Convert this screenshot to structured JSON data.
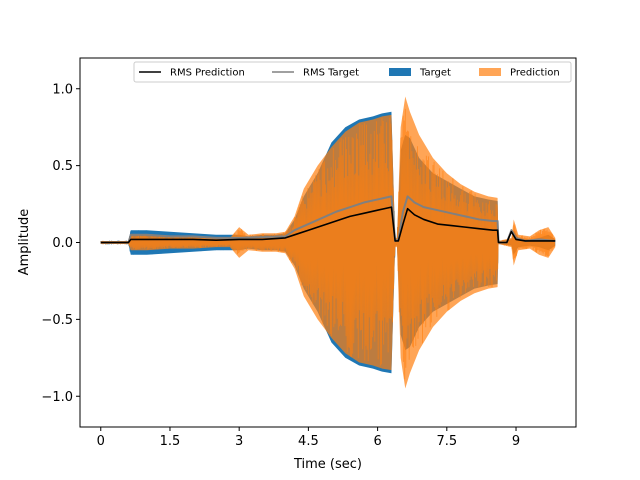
{
  "chart_data": {
    "type": "area",
    "title": "",
    "xlabel": "Time (sec)",
    "ylabel": "Amplitude",
    "xlim": [
      -0.45,
      10.3
    ],
    "ylim": [
      -1.2,
      1.2
    ],
    "x_ticks": [
      0,
      1.5,
      3,
      4.5,
      6,
      7.5,
      9
    ],
    "x_tick_labels": [
      "0",
      "1.5",
      "3",
      "4.5",
      "6",
      "7.5",
      "9"
    ],
    "y_ticks": [
      -1.0,
      -0.5,
      0.0,
      0.5,
      1.0
    ],
    "y_tick_labels": [
      "−1.0",
      "−0.5",
      "0.0",
      "0.5",
      "1.0"
    ],
    "grid": false,
    "legend_position": "top-right",
    "legend": [
      {
        "label": "RMS Prediction",
        "kind": "line",
        "color": "#000000"
      },
      {
        "label": "RMS Target",
        "kind": "line",
        "color": "#808080"
      },
      {
        "label": "Target",
        "kind": "patch",
        "color": "#1f77b4"
      },
      {
        "label": "Prediction",
        "kind": "patch",
        "color": "#ff7f0e"
      }
    ],
    "series": [
      {
        "name": "Target",
        "kind": "envelope",
        "color": "#1f77b4",
        "x": [
          0,
          0.6,
          0.65,
          1.0,
          1.5,
          2.0,
          2.5,
          2.8,
          3.0,
          3.2,
          3.5,
          3.8,
          4.0,
          4.2,
          4.4,
          4.7,
          5.0,
          5.3,
          5.6,
          5.9,
          6.1,
          6.3,
          6.38,
          6.42,
          6.5,
          6.6,
          6.7,
          6.9,
          7.2,
          7.5,
          7.8,
          8.1,
          8.4,
          8.6,
          8.62,
          8.9,
          8.95,
          9.05,
          9.3,
          9.5,
          9.7,
          9.85
        ],
        "upper": [
          0.01,
          0.01,
          0.08,
          0.08,
          0.07,
          0.06,
          0.05,
          0.05,
          0.05,
          0.04,
          0.05,
          0.05,
          0.06,
          0.15,
          0.3,
          0.45,
          0.65,
          0.75,
          0.8,
          0.82,
          0.84,
          0.85,
          0.02,
          0.02,
          0.6,
          0.7,
          0.68,
          0.55,
          0.45,
          0.4,
          0.35,
          0.3,
          0.28,
          0.27,
          0.01,
          0.02,
          0.08,
          0.03,
          0.02,
          0.03,
          0.05,
          0.02
        ],
        "lower": [
          -0.01,
          -0.01,
          -0.08,
          -0.08,
          -0.07,
          -0.06,
          -0.05,
          -0.05,
          -0.05,
          -0.04,
          -0.05,
          -0.05,
          -0.06,
          -0.15,
          -0.3,
          -0.45,
          -0.65,
          -0.75,
          -0.8,
          -0.82,
          -0.84,
          -0.85,
          -0.02,
          -0.02,
          -0.6,
          -0.7,
          -0.68,
          -0.55,
          -0.45,
          -0.4,
          -0.35,
          -0.3,
          -0.28,
          -0.27,
          -0.01,
          -0.02,
          -0.08,
          -0.03,
          -0.02,
          -0.03,
          -0.05,
          -0.02
        ]
      },
      {
        "name": "Prediction",
        "kind": "envelope",
        "color": "#ff7f0e",
        "x": [
          0,
          0.6,
          0.65,
          1.0,
          1.5,
          2.0,
          2.5,
          2.8,
          3.0,
          3.2,
          3.5,
          3.8,
          4.0,
          4.2,
          4.4,
          4.7,
          5.0,
          5.3,
          5.6,
          5.9,
          6.1,
          6.3,
          6.38,
          6.42,
          6.5,
          6.6,
          6.7,
          6.9,
          7.2,
          7.5,
          7.8,
          8.1,
          8.4,
          8.6,
          8.62,
          8.9,
          8.95,
          9.05,
          9.3,
          9.5,
          9.7,
          9.85
        ],
        "upper": [
          0.01,
          0.01,
          0.05,
          0.05,
          0.04,
          0.04,
          0.03,
          0.03,
          0.1,
          0.05,
          0.06,
          0.06,
          0.07,
          0.17,
          0.35,
          0.5,
          0.62,
          0.72,
          0.78,
          0.8,
          0.82,
          0.83,
          0.03,
          0.03,
          0.75,
          0.95,
          0.85,
          0.7,
          0.55,
          0.45,
          0.38,
          0.33,
          0.3,
          0.29,
          0.01,
          0.03,
          0.15,
          0.05,
          0.04,
          0.08,
          0.1,
          0.03
        ],
        "lower": [
          -0.01,
          -0.01,
          -0.05,
          -0.05,
          -0.04,
          -0.04,
          -0.03,
          -0.03,
          -0.1,
          -0.05,
          -0.06,
          -0.06,
          -0.07,
          -0.17,
          -0.35,
          -0.5,
          -0.62,
          -0.72,
          -0.78,
          -0.8,
          -0.82,
          -0.83,
          -0.03,
          -0.03,
          -0.75,
          -0.95,
          -0.85,
          -0.7,
          -0.55,
          -0.45,
          -0.38,
          -0.33,
          -0.3,
          -0.29,
          -0.01,
          -0.03,
          -0.15,
          -0.05,
          -0.04,
          -0.08,
          -0.1,
          -0.03
        ]
      },
      {
        "name": "RMS Target",
        "kind": "line",
        "color": "#808080",
        "x": [
          0,
          0.6,
          0.65,
          1.0,
          1.5,
          2.0,
          2.5,
          3.0,
          3.5,
          4.0,
          4.2,
          4.5,
          4.8,
          5.1,
          5.4,
          5.7,
          6.0,
          6.3,
          6.38,
          6.45,
          6.55,
          6.65,
          6.8,
          7.0,
          7.3,
          7.6,
          7.9,
          8.2,
          8.5,
          8.6,
          8.62,
          8.8,
          8.9,
          9.0,
          9.2,
          9.5,
          9.85
        ],
        "values": [
          0.0,
          0.0,
          0.05,
          0.05,
          0.04,
          0.04,
          0.03,
          0.03,
          0.035,
          0.04,
          0.08,
          0.12,
          0.16,
          0.2,
          0.23,
          0.26,
          0.28,
          0.3,
          0.01,
          0.02,
          0.2,
          0.3,
          0.26,
          0.23,
          0.21,
          0.19,
          0.17,
          0.15,
          0.14,
          0.14,
          0.0,
          0.0,
          0.08,
          0.03,
          0.01,
          0.02,
          0.01
        ]
      },
      {
        "name": "RMS Prediction",
        "kind": "line",
        "color": "#000000",
        "x": [
          0,
          0.6,
          0.65,
          1.0,
          1.5,
          2.0,
          2.5,
          3.0,
          3.5,
          4.0,
          4.2,
          4.5,
          4.8,
          5.1,
          5.4,
          5.7,
          6.0,
          6.3,
          6.38,
          6.45,
          6.55,
          6.65,
          6.8,
          7.0,
          7.3,
          7.6,
          7.9,
          8.2,
          8.5,
          8.6,
          8.62,
          8.8,
          8.9,
          9.0,
          9.2,
          9.5,
          9.85
        ],
        "values": [
          0.0,
          0.0,
          0.02,
          0.02,
          0.02,
          0.02,
          0.015,
          0.02,
          0.02,
          0.03,
          0.05,
          0.08,
          0.11,
          0.14,
          0.17,
          0.19,
          0.21,
          0.23,
          0.01,
          0.01,
          0.12,
          0.22,
          0.18,
          0.15,
          0.12,
          0.11,
          0.1,
          0.09,
          0.08,
          0.08,
          0.0,
          0.0,
          0.07,
          0.02,
          0.01,
          0.01,
          0.01
        ]
      }
    ]
  }
}
